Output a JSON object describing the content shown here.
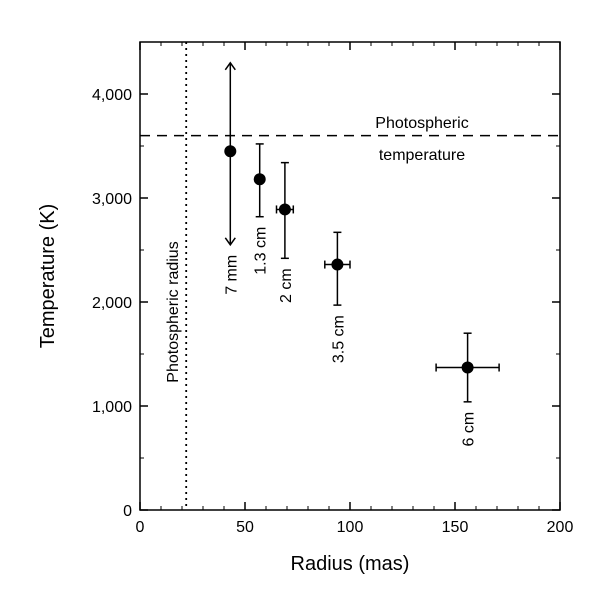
{
  "chart_data": {
    "type": "scatter",
    "xlabel": "Radius (mas)",
    "ylabel": "Temperature (K)",
    "xlim": [
      0,
      200
    ],
    "ylim": [
      0,
      4500
    ],
    "x_ticks": [
      0,
      50,
      100,
      150,
      200
    ],
    "x_tick_labels": [
      "0",
      "50",
      "100",
      "150",
      "200"
    ],
    "y_ticks": [
      0,
      1000,
      2000,
      3000,
      4000
    ],
    "y_tick_labels": [
      "0",
      "1,000",
      "2,000",
      "3,000",
      "4,000"
    ],
    "grid": false,
    "legend": "none",
    "points": [
      {
        "label": "7 mm",
        "x": 43,
        "y": 3450,
        "y_low": 2550,
        "y_high": 4300,
        "x_err": 0,
        "arrows": true
      },
      {
        "label": "1.3 cm",
        "x": 57,
        "y": 3180,
        "y_low": 2820,
        "y_high": 3520,
        "x_err": 0
      },
      {
        "label": "2 cm",
        "x": 69,
        "y": 2890,
        "y_low": 2420,
        "y_high": 3340,
        "x_err": 4
      },
      {
        "label": "3.5 cm",
        "x": 94,
        "y": 2360,
        "y_low": 1970,
        "y_high": 2670,
        "x_err": 6
      },
      {
        "label": "6 cm",
        "x": 156,
        "y": 1370,
        "y_low": 1040,
        "y_high": 1700,
        "x_err": 15
      }
    ],
    "reference_lines": {
      "photospheric_temperature": {
        "value": 3600,
        "label_line1": "Photospheric",
        "label_line2": "temperature",
        "style": "dashed"
      },
      "photospheric_radius": {
        "value": 22,
        "label": "Photospheric radius",
        "style": "dotted"
      }
    },
    "colors": {
      "marks": "#000000",
      "background": "#ffffff"
    }
  }
}
